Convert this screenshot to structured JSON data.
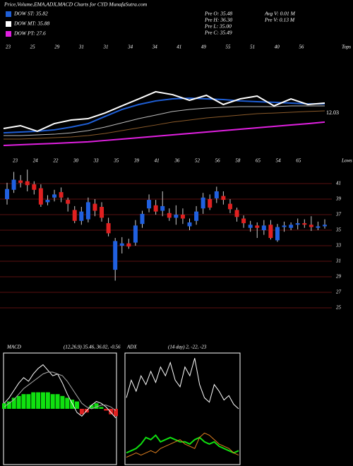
{
  "header": {
    "title": "Price,Volume,EMA,ADX,MACD Charts for CYD MunafaSutra.com",
    "legend": [
      {
        "label": "DOW ST: 35.82",
        "color": "#1f5fd6"
      },
      {
        "label": "DOW MT: 35.88",
        "color": "#ffffff"
      },
      {
        "label": "DOW PT: 27.6",
        "color": "#e020e0"
      }
    ],
    "stats": [
      "Pre O: 35.48",
      "Pre H: 36.30",
      "Pre L: 35.00",
      "Pre C: 35.49",
      "Avg V: 0.01 M",
      "Pre V: 0.13 M"
    ]
  },
  "chart_data": [
    {
      "type": "line",
      "corner_label": "Tops",
      "annotation": "12.03",
      "x_labels": [
        "23",
        "25",
        "29",
        "31",
        "31",
        "34",
        "34",
        "41",
        "49",
        "55",
        "51",
        "40",
        "56"
      ],
      "ylim": [
        0,
        100
      ],
      "series": [
        {
          "color": "#8a5a2a",
          "values": [
            11.8,
            11.8,
            12.4,
            13.1,
            13.7,
            15.0,
            17.0,
            19.6,
            22.2,
            24.8,
            27.5,
            29.4,
            31.4,
            32.7,
            34.0,
            35.3,
            35.9,
            36.6,
            37.3,
            37.9
          ]
        },
        {
          "color": "#bbbbbb",
          "values": [
            15.0,
            15.0,
            15.7,
            16.3,
            17.6,
            19.6,
            22.9,
            26.8,
            30.7,
            34.0,
            37.3,
            39.2,
            40.5,
            41.2,
            41.8,
            41.8,
            41.8,
            42.5,
            42.5,
            42.5
          ]
        },
        {
          "color": "#e020e0",
          "values": [
            5.9,
            6.5,
            7.2,
            7.8,
            8.5,
            9.2,
            10.5,
            11.8,
            13.1,
            14.4,
            15.7,
            17.0,
            18.3,
            19.6,
            20.9,
            22.2,
            23.5,
            24.8,
            26.1,
            27.5
          ]
        },
        {
          "color": "#1f5fd6",
          "values": [
            17.6,
            18.3,
            19.0,
            20.3,
            22.9,
            26.1,
            32.7,
            39.2,
            43.8,
            47.1,
            49.0,
            49.7,
            49.0,
            48.4,
            47.1,
            46.4,
            45.8,
            45.1,
            44.4,
            44.4
          ]
        },
        {
          "color": "#ffffff",
          "values": [
            21.6,
            24.2,
            19.0,
            26.1,
            29.4,
            30.7,
            35.9,
            42.5,
            49.0,
            55.6,
            52.9,
            47.7,
            52.3,
            43.8,
            49.0,
            51.6,
            42.5,
            49.0,
            43.8,
            45.1
          ]
        }
      ]
    },
    {
      "type": "candlestick",
      "corner_label": "Lows",
      "x_labels": [
        "23",
        "24",
        "22",
        "30",
        "33",
        "35",
        "39",
        "41",
        "36",
        "52",
        "56",
        "58",
        "65",
        "54",
        "65"
      ],
      "ylim": [
        21,
        44
      ],
      "yticks": [
        41,
        39,
        37,
        35,
        33,
        31,
        29,
        27,
        25
      ],
      "grid": true,
      "grid_color": "#5a1010",
      "up_color": "#2060e0",
      "down_color": "#e02020",
      "open": [
        39.0,
        40.2,
        41.4,
        41.3,
        40.9,
        40.4,
        38.6,
        39.2,
        39.9,
        38.9,
        37.6,
        36.2,
        36.4,
        38.4,
        38.0,
        35.9,
        29.9,
        33.0,
        33.3,
        33.4,
        35.8,
        37.8,
        38.2,
        37.5,
        37.2,
        36.6,
        37.0,
        35.5,
        36.2,
        37.8,
        39.0,
        39.1,
        39.4,
        38.4,
        37.6,
        36.5,
        35.3,
        35.6,
        35.0,
        35.7,
        33.7,
        35.4,
        35.3,
        35.7,
        35.9,
        35.7,
        35.3,
        35.5
      ],
      "high": [
        41.1,
        42.5,
        42.1,
        42.8,
        41.3,
        40.9,
        39.5,
        40.2,
        40.5,
        39.2,
        38.1,
        38.0,
        39.2,
        39.0,
        38.6,
        36.6,
        34.0,
        34.1,
        33.9,
        36.3,
        37.5,
        39.6,
        38.9,
        40.0,
        37.8,
        38.2,
        37.8,
        36.5,
        38.1,
        39.8,
        39.6,
        40.6,
        40.0,
        39.0,
        37.9,
        36.9,
        36.2,
        36.0,
        36.3,
        36.3,
        35.8,
        36.1,
        36.0,
        36.5,
        36.4,
        36.8,
        36.1,
        36.4
      ],
      "low": [
        38.3,
        39.8,
        40.5,
        40.0,
        39.6,
        38.0,
        38.2,
        38.7,
        38.6,
        37.4,
        35.9,
        35.7,
        36.0,
        36.8,
        36.1,
        34.2,
        28.5,
        32.0,
        32.6,
        33.0,
        35.3,
        37.3,
        37.0,
        36.8,
        36.2,
        35.7,
        35.8,
        35.0,
        35.7,
        37.1,
        37.6,
        38.5,
        38.3,
        37.2,
        36.1,
        35.3,
        34.8,
        34.0,
        34.4,
        33.8,
        33.5,
        34.8,
        35.0,
        35.1,
        35.3,
        34.9,
        35.0,
        35.2
      ],
      "close": [
        40.3,
        41.5,
        41.1,
        40.8,
        40.2,
        38.3,
        38.9,
        39.6,
        39.2,
        38.4,
        36.2,
        37.4,
        38.6,
        37.5,
        36.6,
        34.6,
        33.6,
        33.3,
        32.9,
        35.6,
        37.1,
        38.9,
        37.4,
        38.1,
        36.6,
        37.0,
        36.5,
        36.0,
        37.4,
        39.2,
        37.9,
        40.0,
        38.9,
        37.7,
        36.7,
        35.9,
        35.7,
        35.3,
        35.6,
        34.0,
        35.4,
        35.6,
        35.7,
        35.9,
        35.7,
        35.4,
        35.5,
        35.7
      ]
    },
    {
      "type": "macd",
      "title": "MACD",
      "subtitle": "(12,26,9) 35.46, 36.02, -0.56",
      "ylim": [
        -3,
        3
      ],
      "series": [
        {
          "color": "#ffffff",
          "values": [
            0.3,
            0.6,
            1.0,
            1.4,
            1.7,
            1.5,
            1.9,
            2.2,
            2.4,
            2.1,
            1.8,
            1.9,
            1.4,
            0.8,
            0.3,
            -0.2,
            -0.4,
            -0.1,
            0.2,
            0.4,
            0.3,
            0.1,
            -0.2,
            -0.5
          ]
        },
        {
          "color": "#aaaaaa",
          "values": [
            0.1,
            0.3,
            0.5,
            0.8,
            1.1,
            1.3,
            1.5,
            1.7,
            1.9,
            2.0,
            2.0,
            1.9,
            1.8,
            1.5,
            1.1,
            0.7,
            0.3,
            0.1,
            0.0,
            0.1,
            0.2,
            0.2,
            0.1,
            -0.1
          ]
        }
      ],
      "histogram": [
        0.3,
        0.4,
        0.6,
        0.7,
        0.8,
        0.8,
        0.9,
        0.9,
        0.9,
        0.9,
        0.8,
        0.8,
        0.7,
        0.6,
        0.5,
        0.4,
        -0.3,
        -0.2,
        0.2,
        0.3,
        0.1,
        -0.1,
        -0.3,
        -0.4
      ],
      "up_color": "#10e010",
      "down_color": "#e02020"
    },
    {
      "type": "adx",
      "title": "ADX",
      "subtitle": "(14 day) 2, -22, -23",
      "ylim": [
        0,
        50
      ],
      "series": [
        {
          "color": "#ffffff",
          "values": [
            30,
            38,
            33,
            40,
            36,
            42,
            37,
            44,
            40,
            46,
            38,
            35,
            44,
            40,
            48,
            36,
            30,
            28,
            36,
            33,
            29,
            31,
            27,
            25
          ]
        },
        {
          "color": "#10e010",
          "values": [
            5,
            6,
            7,
            9,
            12,
            11,
            13,
            10,
            11,
            12,
            11,
            10,
            10,
            9,
            11,
            12,
            10,
            9,
            10,
            8,
            7,
            6,
            5,
            6
          ]
        },
        {
          "color": "#e08020",
          "values": [
            3,
            4,
            5,
            4,
            5,
            6,
            5,
            7,
            8,
            9,
            10,
            11,
            9,
            8,
            7,
            12,
            14,
            13,
            11,
            9,
            8,
            7,
            5,
            4
          ]
        }
      ]
    }
  ]
}
